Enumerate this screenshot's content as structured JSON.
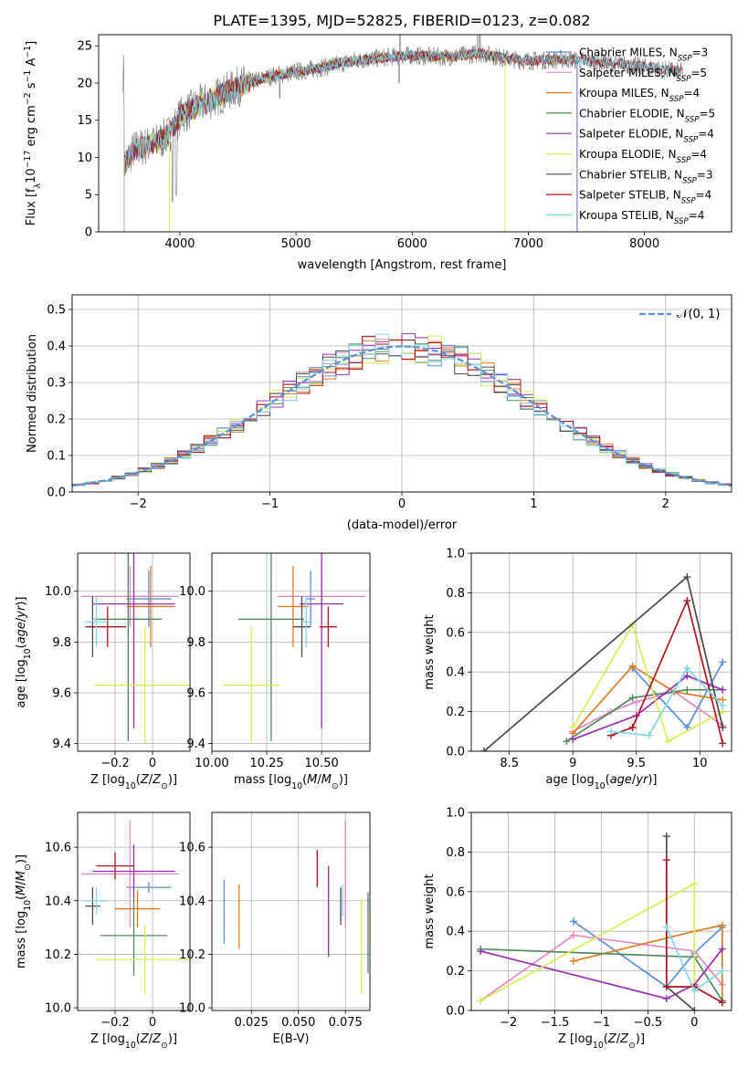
{
  "colors": {
    "Chabrier MILES": "#5b8fd6",
    "Salpeter MILES": "#e887c0",
    "Kroupa MILES": "#e07b24",
    "Chabrier ELODIE": "#4f8b5a",
    "Salpeter ELODIE": "#9b2fb4",
    "Kroupa ELODIE": "#d8ec58",
    "Chabrier STELIB": "#4a4a4a",
    "Salpeter STELIB": "#b0141e",
    "Kroupa STELIB": "#7fd8e6"
  },
  "models": [
    "Chabrier MILES",
    "Salpeter MILES",
    "Kroupa MILES",
    "Chabrier ELODIE",
    "Salpeter ELODIE",
    "Kroupa ELODIE",
    "Chabrier STELIB",
    "Salpeter STELIB",
    "Kroupa STELIB"
  ],
  "chart_data": [
    {
      "id": "spectrum",
      "type": "line",
      "title": "PLATE=1395, MJD=52825, FIBERID=0123, z=0.082",
      "xlabel": "wavelength [Angstrom, rest frame]",
      "ylabel": "Flux [f_λ 10^-17 erg cm^-2 s^-1 A^-1]",
      "xlim": [
        3300,
        8750
      ],
      "ylim": [
        0,
        26.5
      ],
      "xticks": [
        4000,
        5000,
        6000,
        7000,
        8000
      ],
      "yticks": [
        0,
        5,
        10,
        15,
        20,
        25
      ],
      "legend": [
        {
          "name": "Chabrier MILES",
          "nssp": "3"
        },
        {
          "name": "Salpeter MILES",
          "nssp": "5"
        },
        {
          "name": "Kroupa MILES",
          "nssp": "4"
        },
        {
          "name": "Chabrier ELODIE",
          "nssp": "5"
        },
        {
          "name": "Salpeter ELODIE",
          "nssp": "4"
        },
        {
          "name": "Kroupa ELODIE",
          "nssp": "4"
        },
        {
          "name": "Chabrier STELIB",
          "nssp": "3"
        },
        {
          "name": "Salpeter STELIB",
          "nssp": "4"
        },
        {
          "name": "Kroupa STELIB",
          "nssp": "4"
        }
      ],
      "legend_position": "right",
      "continuum": [
        [
          3520,
          9
        ],
        [
          3600,
          11
        ],
        [
          3700,
          11.5
        ],
        [
          3800,
          12
        ],
        [
          3900,
          13
        ],
        [
          4000,
          15.5
        ],
        [
          4100,
          16.5
        ],
        [
          4300,
          18
        ],
        [
          4500,
          19.5
        ],
        [
          4800,
          21
        ],
        [
          5000,
          21.5
        ],
        [
          5200,
          22
        ],
        [
          5500,
          23
        ],
        [
          5800,
          23.5
        ],
        [
          6000,
          23.7
        ],
        [
          6300,
          23.5
        ],
        [
          6600,
          24
        ],
        [
          6800,
          23.3
        ],
        [
          7000,
          23
        ],
        [
          7300,
          23.2
        ],
        [
          7500,
          23
        ],
        [
          7800,
          22.5
        ],
        [
          8100,
          22
        ],
        [
          8300,
          21.5
        ]
      ],
      "model_ends": {
        "Chabrier MILES": 7420,
        "Salpeter MILES": 7420,
        "Kroupa MILES": 7420,
        "Chabrier ELODIE": 6800,
        "Salpeter ELODIE": 6800,
        "Kroupa ELODIE": 6800,
        "Chabrier STELIB": 8320,
        "Salpeter STELIB": 8320,
        "Kroupa STELIB": 8320
      }
    },
    {
      "id": "residuals",
      "type": "line",
      "xlabel": "(data-model)/error",
      "ylabel": "Normed distribution",
      "xlim": [
        -2.5,
        2.5
      ],
      "ylim": [
        0,
        0.54
      ],
      "xticks": [
        -2,
        -1,
        0,
        1,
        2
      ],
      "yticks": [
        0.0,
        0.1,
        0.2,
        0.3,
        0.4,
        0.5
      ],
      "reference_curve": "N(0,1)",
      "legend_label": "𝒩(0, 1)",
      "legend_position": "top-right",
      "bin_width": 0.1
    },
    {
      "id": "z_age",
      "type": "scatter",
      "xlabel": "Z [log10(Z/Z⊙)]",
      "ylabel": "age  [log10(age/yr)]",
      "xlim": [
        -0.4,
        0.2
      ],
      "ylim": [
        9.37,
        10.15
      ],
      "xticks": [
        -0.2,
        0.0
      ],
      "yticks": [
        9.4,
        9.6,
        9.8,
        10.0
      ],
      "points": [
        {
          "model": "Chabrier MILES",
          "x": -0.02,
          "xerr": 0.12,
          "y": 9.97,
          "yerr": 0.11
        },
        {
          "model": "Salpeter MILES",
          "x": -0.12,
          "xerr": 0.26,
          "y": 9.98,
          "yerr": 0.12
        },
        {
          "model": "Kroupa MILES",
          "x": -0.01,
          "xerr": 0.13,
          "y": 9.94,
          "yerr": 0.16
        },
        {
          "model": "Chabrier ELODIE",
          "x": -0.13,
          "xerr": 0.18,
          "y": 9.89,
          "yerr": 0.48
        },
        {
          "model": "Salpeter ELODIE",
          "x": -0.1,
          "xerr": 0.22,
          "y": 9.95,
          "yerr": 0.49
        },
        {
          "model": "Kroupa ELODIE",
          "x": -0.04,
          "xerr": 0.27,
          "y": 9.63,
          "yerr": 0.23
        },
        {
          "model": "Chabrier STELIB",
          "x": -0.32,
          "xerr": 0.04,
          "y": 9.86,
          "yerr": 0.12
        },
        {
          "model": "Salpeter STELIB",
          "x": -0.24,
          "xerr": 0.1,
          "y": 9.86,
          "yerr": 0.08
        },
        {
          "model": "Kroupa STELIB",
          "x": -0.3,
          "xerr": 0.06,
          "y": 9.88,
          "yerr": 0.1
        }
      ]
    },
    {
      "id": "mass_age",
      "type": "scatter",
      "xlabel": "mass [log10(M/M⊙)]",
      "ylabel": "",
      "xlim": [
        10.0,
        10.72
      ],
      "ylim": [
        9.37,
        10.15
      ],
      "xticks": [
        10.0,
        10.25,
        10.5
      ],
      "xtick_labels": [
        "10.00",
        "10.25",
        "10.50"
      ],
      "yticks": [
        9.4,
        9.6,
        9.8,
        10.0
      ],
      "points": [
        {
          "model": "Chabrier MILES",
          "x": 10.45,
          "xerr": 0.02,
          "y": 9.97,
          "yerr": 0.11
        },
        {
          "model": "Salpeter MILES",
          "x": 10.5,
          "xerr": 0.2,
          "y": 9.98,
          "yerr": 0.12
        },
        {
          "model": "Kroupa MILES",
          "x": 10.37,
          "xerr": 0.07,
          "y": 9.94,
          "yerr": 0.16
        },
        {
          "model": "Chabrier ELODIE",
          "x": 10.27,
          "xerr": 0.15,
          "y": 9.89,
          "yerr": 0.48
        },
        {
          "model": "Salpeter ELODIE",
          "x": 10.5,
          "xerr": 0.1,
          "y": 9.95,
          "yerr": 0.49
        },
        {
          "model": "Kroupa ELODIE",
          "x": 10.18,
          "xerr": 0.13,
          "y": 9.63,
          "yerr": 0.23
        },
        {
          "model": "Chabrier STELIB",
          "x": 10.41,
          "xerr": 0.04,
          "y": 9.86,
          "yerr": 0.12
        },
        {
          "model": "Salpeter STELIB",
          "x": 10.53,
          "xerr": 0.04,
          "y": 9.86,
          "yerr": 0.08
        },
        {
          "model": "Kroupa STELIB",
          "x": 10.43,
          "xerr": 0.02,
          "y": 9.88,
          "yerr": 0.1
        }
      ]
    },
    {
      "id": "age_weight",
      "type": "line",
      "xlabel": "age  [log10(age/yr)]",
      "ylabel": "mass weight",
      "xlim": [
        8.2,
        10.25
      ],
      "ylim": [
        0,
        1.0
      ],
      "xticks": [
        8.5,
        9.0,
        9.5,
        10.0
      ],
      "yticks": [
        0.0,
        0.2,
        0.4,
        0.6,
        0.8,
        1.0
      ],
      "series": [
        {
          "name": "Chabrier MILES",
          "x": [
            9.47,
            9.9,
            10.18
          ],
          "y": [
            0.42,
            0.12,
            0.45
          ]
        },
        {
          "name": "Salpeter MILES",
          "x": [
            9.0,
            9.3,
            9.5,
            9.8,
            10.18
          ],
          "y": [
            0.1,
            0.2,
            0.25,
            0.3,
            0.13
          ]
        },
        {
          "name": "Kroupa MILES",
          "x": [
            9.0,
            9.47,
            9.8,
            10.18
          ],
          "y": [
            0.09,
            0.43,
            0.3,
            0.26
          ]
        },
        {
          "name": "Chabrier ELODIE",
          "x": [
            8.95,
            9.47,
            9.9,
            10.18
          ],
          "y": [
            0.05,
            0.27,
            0.31,
            0.31
          ]
        },
        {
          "name": "Salpeter ELODIE",
          "x": [
            9.0,
            9.5,
            9.9,
            10.18
          ],
          "y": [
            0.06,
            0.18,
            0.38,
            0.31
          ]
        },
        {
          "name": "Kroupa ELODIE",
          "x": [
            9.0,
            9.47,
            9.75,
            10.18
          ],
          "y": [
            0.12,
            0.64,
            0.05,
            0.2
          ]
        },
        {
          "name": "Chabrier STELIB",
          "x": [
            8.3,
            9.9,
            10.18
          ],
          "y": [
            0.0,
            0.88,
            0.12
          ]
        },
        {
          "name": "Salpeter STELIB",
          "x": [
            9.3,
            9.47,
            9.9,
            10.18
          ],
          "y": [
            0.08,
            0.12,
            0.76,
            0.04
          ]
        },
        {
          "name": "Kroupa STELIB",
          "x": [
            9.3,
            9.6,
            9.9,
            10.18
          ],
          "y": [
            0.1,
            0.08,
            0.42,
            0.23
          ]
        }
      ]
    },
    {
      "id": "z_mass",
      "type": "scatter",
      "xlabel": "Z [log10(Z/Z⊙)]",
      "ylabel": "mass [log10(M/M⊙)]",
      "xlim": [
        -0.4,
        0.2
      ],
      "ylim": [
        9.99,
        10.73
      ],
      "xticks": [
        -0.2,
        0.0
      ],
      "yticks": [
        10.0,
        10.2,
        10.4,
        10.6
      ],
      "points": [
        {
          "model": "Chabrier MILES",
          "x": -0.02,
          "xerr": 0.12,
          "y": 10.45,
          "yerr": 0.02
        },
        {
          "model": "Salpeter MILES",
          "x": -0.12,
          "xerr": 0.26,
          "y": 10.5,
          "yerr": 0.2
        },
        {
          "model": "Kroupa MILES",
          "x": -0.08,
          "xerr": 0.12,
          "y": 10.37,
          "yerr": 0.07
        },
        {
          "model": "Chabrier ELODIE",
          "x": -0.1,
          "xerr": 0.18,
          "y": 10.27,
          "yerr": 0.15
        },
        {
          "model": "Salpeter ELODIE",
          "x": -0.1,
          "xerr": 0.22,
          "y": 10.51,
          "yerr": 0.1
        },
        {
          "model": "Kroupa ELODIE",
          "x": -0.04,
          "xerr": 0.27,
          "y": 10.18,
          "yerr": 0.13
        },
        {
          "model": "Chabrier STELIB",
          "x": -0.32,
          "xerr": 0.04,
          "y": 10.38,
          "yerr": 0.07
        },
        {
          "model": "Salpeter STELIB",
          "x": -0.2,
          "xerr": 0.1,
          "y": 10.53,
          "yerr": 0.05
        },
        {
          "model": "Kroupa STELIB",
          "x": -0.3,
          "xerr": 0.06,
          "y": 10.4,
          "yerr": 0.05
        }
      ]
    },
    {
      "id": "ebv_mass",
      "type": "scatter",
      "xlabel": "E(B-V)",
      "ylabel": "",
      "xlim": [
        0.004,
        0.088
      ],
      "ylim": [
        9.99,
        10.73
      ],
      "xticks": [
        0.025,
        0.05,
        0.075
      ],
      "xtick_labels": [
        "0.025",
        "0.050",
        "0.075"
      ],
      "yticks": [
        10.0,
        10.2,
        10.4,
        10.6
      ],
      "points": [
        {
          "model": "Chabrier MILES",
          "x": 0.0105,
          "y": 10.36,
          "yerr": 0.12
        },
        {
          "model": "Salpeter MILES",
          "x": 0.075,
          "y": 10.5,
          "yerr": 0.2
        },
        {
          "model": "Kroupa MILES",
          "x": 0.0185,
          "y": 10.34,
          "yerr": 0.12
        },
        {
          "model": "Chabrier ELODIE",
          "x": 0.087,
          "y": 10.28,
          "yerr": 0.15
        },
        {
          "model": "Salpeter ELODIE",
          "x": 0.066,
          "y": 10.36,
          "yerr": 0.17
        },
        {
          "model": "Kroupa ELODIE",
          "x": 0.0835,
          "y": 10.23,
          "yerr": 0.18
        },
        {
          "model": "Chabrier STELIB",
          "x": 0.0725,
          "y": 10.38,
          "yerr": 0.07
        },
        {
          "model": "Salpeter STELIB",
          "x": 0.06,
          "y": 10.52,
          "yerr": 0.07
        },
        {
          "model": "Kroupa STELIB",
          "x": 0.0735,
          "y": 10.4,
          "yerr": 0.06
        }
      ]
    },
    {
      "id": "z_weight",
      "type": "line",
      "xlabel": "Z [log10(Z/Z⊙)]",
      "ylabel": "mass weight",
      "xlim": [
        -2.4,
        0.4
      ],
      "ylim": [
        0,
        1.0
      ],
      "xticks": [
        -2.0,
        -1.5,
        -1.0,
        -0.5,
        0.0
      ],
      "yticks": [
        0.0,
        0.2,
        0.4,
        0.6,
        0.8,
        1.0
      ],
      "series": [
        {
          "name": "Chabrier MILES",
          "x": [
            -1.3,
            -0.3,
            0.0,
            0.3
          ],
          "y": [
            0.45,
            0.12,
            0.29,
            0.42
          ]
        },
        {
          "name": "Salpeter MILES",
          "x": [
            -2.3,
            -1.3,
            0.0,
            0.3
          ],
          "y": [
            0.05,
            0.38,
            0.3,
            0.13
          ]
        },
        {
          "name": "Kroupa MILES",
          "x": [
            -1.3,
            0.0,
            0.3,
            0.3
          ],
          "y": [
            0.25,
            0.4,
            0.43,
            0.05
          ]
        },
        {
          "name": "Chabrier ELODIE",
          "x": [
            -2.3,
            0.0,
            0.3
          ],
          "y": [
            0.31,
            0.27,
            0.05
          ]
        },
        {
          "name": "Salpeter ELODIE",
          "x": [
            -2.3,
            -0.3,
            0.0,
            0.3
          ],
          "y": [
            0.3,
            0.06,
            0.13,
            0.31
          ]
        },
        {
          "name": "Kroupa ELODIE",
          "x": [
            -2.3,
            0.0,
            0.0
          ],
          "y": [
            0.05,
            0.64,
            0.12
          ]
        },
        {
          "name": "Chabrier STELIB",
          "x": [
            -0.3,
            -0.3,
            0.0
          ],
          "y": [
            0.88,
            0.12,
            0.0
          ]
        },
        {
          "name": "Salpeter STELIB",
          "x": [
            -0.3,
            -0.3,
            0.0,
            0.3
          ],
          "y": [
            0.76,
            0.12,
            0.12,
            0.04
          ]
        },
        {
          "name": "Kroupa STELIB",
          "x": [
            -0.3,
            0.0,
            0.3
          ],
          "y": [
            0.42,
            0.1,
            0.2
          ]
        }
      ]
    }
  ]
}
